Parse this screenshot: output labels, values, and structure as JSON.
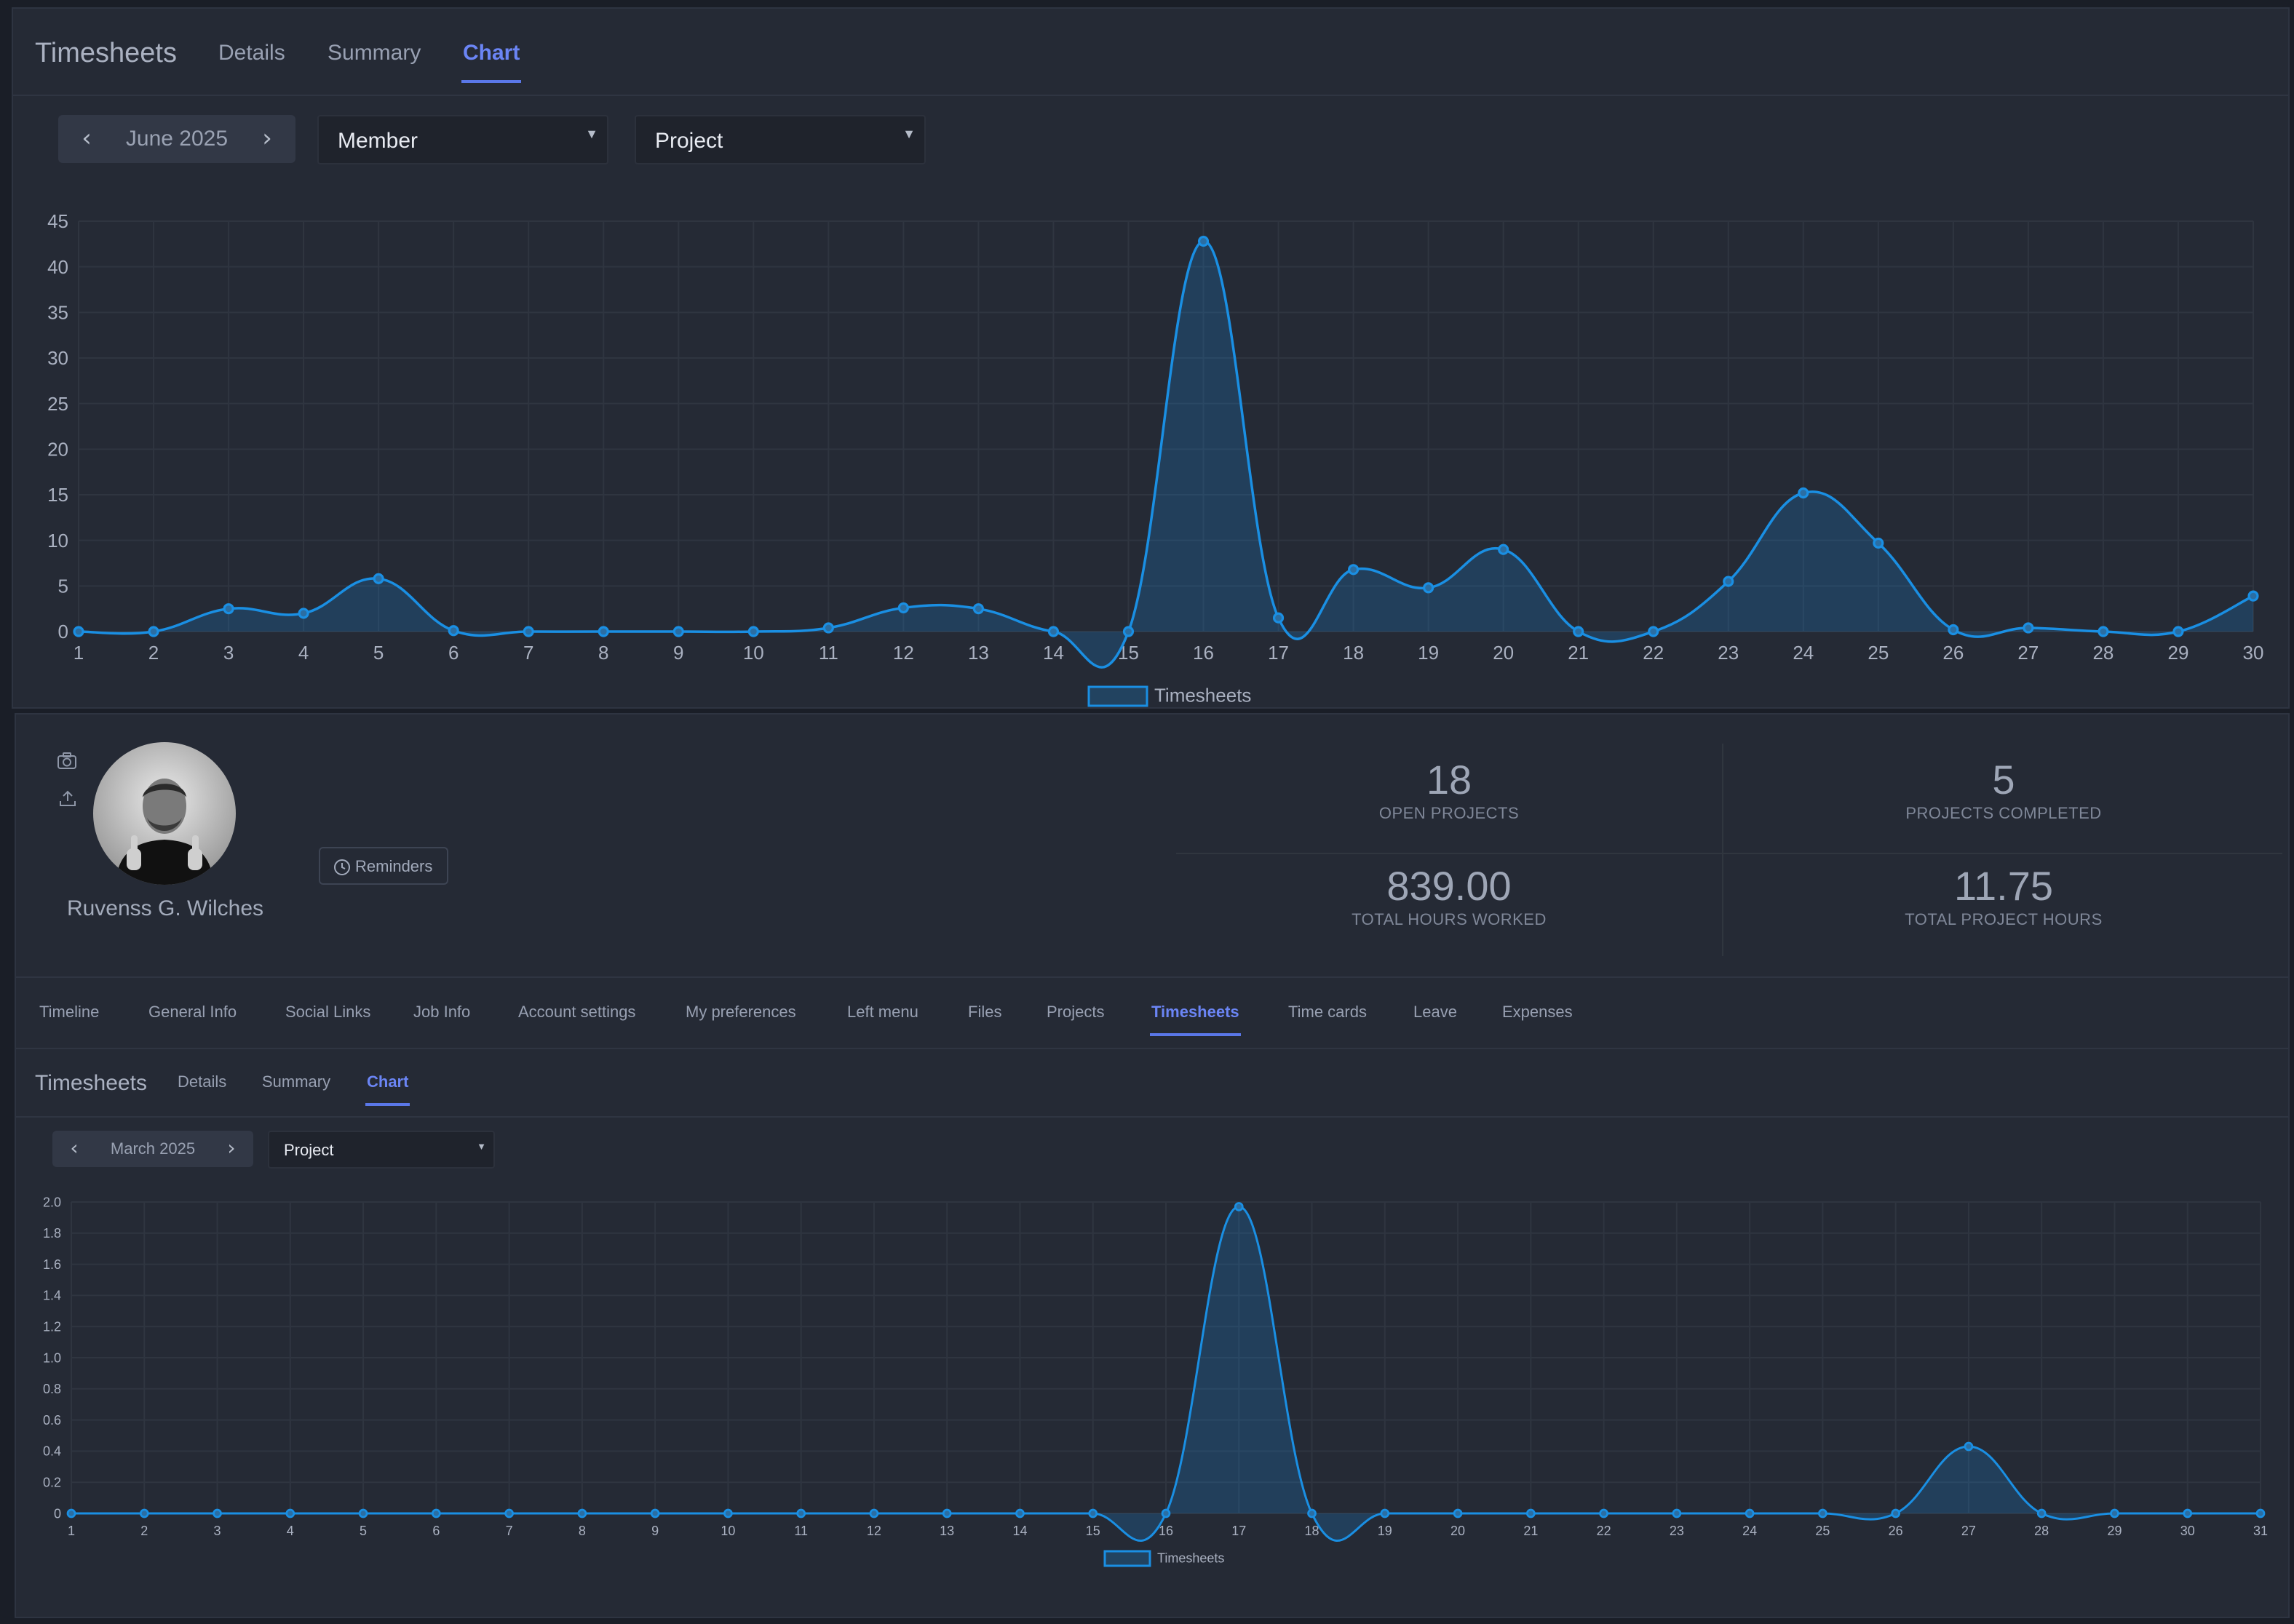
{
  "top": {
    "title": "Timesheets",
    "tabs": [
      {
        "label": "Details"
      },
      {
        "label": "Summary"
      },
      {
        "label": "Chart",
        "active": true
      }
    ],
    "month_nav": {
      "label": "June 2025",
      "prev_icon": "chevron-left-icon",
      "next_icon": "chevron-right-icon"
    },
    "filters": [
      {
        "value": "Member"
      },
      {
        "value": "Project"
      }
    ],
    "chart_data": {
      "type": "area",
      "x": [
        1,
        2,
        3,
        4,
        5,
        6,
        7,
        8,
        9,
        10,
        11,
        12,
        13,
        14,
        15,
        16,
        17,
        18,
        19,
        20,
        21,
        22,
        23,
        24,
        25,
        26,
        27,
        28,
        29,
        30
      ],
      "series": [
        {
          "name": "Timesheets",
          "values": [
            0,
            0,
            2.5,
            2,
            5.8,
            0.1,
            0,
            0,
            0,
            0,
            0.4,
            2.6,
            2.5,
            0,
            0,
            42.8,
            1.5,
            6.8,
            4.8,
            9,
            0,
            0,
            5.5,
            15.2,
            9.7,
            0.2,
            0.4,
            0,
            0,
            3.9
          ]
        }
      ],
      "yticks": [
        0,
        5,
        10,
        15,
        20,
        25,
        30,
        35,
        40,
        45
      ],
      "ylim": [
        0,
        45
      ],
      "grid": true,
      "legend": "bottom-center",
      "color": "#1a8fe3"
    }
  },
  "profile": {
    "name": "Ruvenss G. Wilches",
    "side_icons": [
      "camera-icon",
      "upload-icon"
    ],
    "reminders_label": "Reminders",
    "reminders_icon": "clock-icon",
    "stats": [
      {
        "value": "18",
        "label": "OPEN PROJECTS"
      },
      {
        "value": "5",
        "label": "PROJECTS COMPLETED"
      },
      {
        "value": "839.00",
        "label": "TOTAL HOURS WORKED"
      },
      {
        "value": "11.75",
        "label": "TOTAL PROJECT HOURS"
      }
    ],
    "nav_tabs": [
      {
        "label": "Timeline"
      },
      {
        "label": "General Info"
      },
      {
        "label": "Social Links"
      },
      {
        "label": "Job Info"
      },
      {
        "label": "Account settings"
      },
      {
        "label": "My preferences"
      },
      {
        "label": "Left menu"
      },
      {
        "label": "Files"
      },
      {
        "label": "Projects"
      },
      {
        "label": "Timesheets",
        "active": true
      },
      {
        "label": "Time cards"
      },
      {
        "label": "Leave"
      },
      {
        "label": "Expenses"
      }
    ]
  },
  "bottom": {
    "title": "Timesheets",
    "tabs": [
      {
        "label": "Details"
      },
      {
        "label": "Summary"
      },
      {
        "label": "Chart",
        "active": true
      }
    ],
    "month_nav": {
      "label": "March 2025",
      "prev_icon": "chevron-left-icon",
      "next_icon": "chevron-right-icon"
    },
    "filters": [
      {
        "value": "Project"
      }
    ],
    "chart_data": {
      "type": "area",
      "x": [
        1,
        2,
        3,
        4,
        5,
        6,
        7,
        8,
        9,
        10,
        11,
        12,
        13,
        14,
        15,
        16,
        17,
        18,
        19,
        20,
        21,
        22,
        23,
        24,
        25,
        26,
        27,
        28,
        29,
        30,
        31
      ],
      "series": [
        {
          "name": "Timesheets",
          "values": [
            0,
            0,
            0,
            0,
            0,
            0,
            0,
            0,
            0,
            0,
            0,
            0,
            0,
            0,
            0,
            0,
            1.97,
            0,
            0,
            0,
            0,
            0,
            0,
            0,
            0,
            0,
            0.43,
            0,
            0,
            0,
            0
          ]
        }
      ],
      "yticks": [
        "0",
        "0.2",
        "0.4",
        "0.6",
        "0.8",
        "1.0",
        "1.2",
        "1.4",
        "1.6",
        "1.8",
        "2.0"
      ],
      "ylim": [
        0,
        2.0
      ],
      "grid": true,
      "legend": "bottom-center",
      "color": "#1a8fe3"
    }
  }
}
